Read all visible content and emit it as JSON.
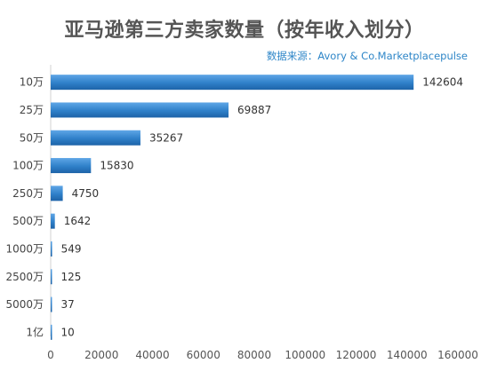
{
  "chart_data": {
    "type": "bar",
    "orientation": "horizontal",
    "title": "亚马逊第三方卖家数量（按年收入划分）",
    "source": "数据来源：Avory & Co.Marketplacepulse",
    "categories": [
      "10万",
      "25万",
      "50万",
      "100万",
      "250万",
      "500万",
      "1000万",
      "2500万",
      "5000万",
      "1亿"
    ],
    "values": [
      142604,
      69887,
      35267,
      15830,
      4750,
      1642,
      549,
      125,
      37,
      10
    ],
    "xlim": [
      0,
      160000
    ],
    "xticks": [
      0,
      20000,
      40000,
      60000,
      80000,
      100000,
      120000,
      140000,
      160000
    ],
    "xlabel": "",
    "ylabel": "",
    "grid": false,
    "legend": "none",
    "bar_color": "#2f80c9"
  }
}
